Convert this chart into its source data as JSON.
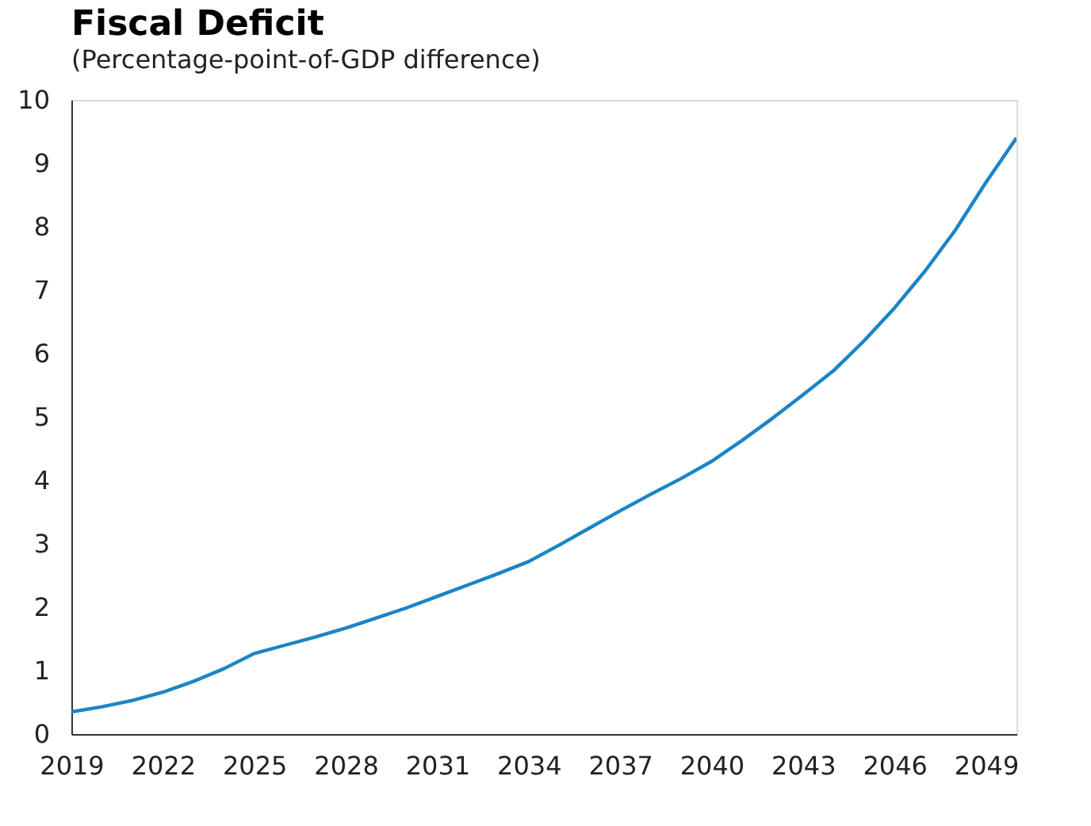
{
  "chart_data": {
    "type": "line",
    "title": "Fiscal Deficit",
    "subtitle": "(Percentage-point-of-GDP difference)",
    "x": [
      2019,
      2020,
      2021,
      2022,
      2023,
      2024,
      2025,
      2026,
      2027,
      2028,
      2029,
      2030,
      2031,
      2032,
      2033,
      2034,
      2035,
      2036,
      2037,
      2038,
      2039,
      2040,
      2041,
      2042,
      2043,
      2044,
      2045,
      2046,
      2047,
      2048,
      2049,
      2050
    ],
    "series": [
      {
        "color": "#1a85c6",
        "values": [
          0.35,
          0.43,
          0.53,
          0.66,
          0.83,
          1.03,
          1.27,
          1.4,
          1.53,
          1.67,
          1.83,
          1.99,
          2.17,
          2.35,
          2.53,
          2.72,
          2.98,
          3.25,
          3.52,
          3.78,
          4.03,
          4.3,
          4.63,
          4.98,
          5.35,
          5.73,
          6.2,
          6.72,
          7.3,
          7.95,
          8.7,
          9.4
        ]
      }
    ],
    "xlim": [
      2019,
      2050
    ],
    "xticks": [
      2019,
      2022,
      2025,
      2028,
      2031,
      2034,
      2037,
      2040,
      2043,
      2046,
      2049
    ],
    "ylim": [
      0,
      10
    ],
    "yticks": [
      0,
      1,
      2,
      3,
      4,
      5,
      6,
      7,
      8,
      9,
      10
    ],
    "grid": false,
    "legend": false,
    "marker": "none",
    "line_style": "solid"
  }
}
